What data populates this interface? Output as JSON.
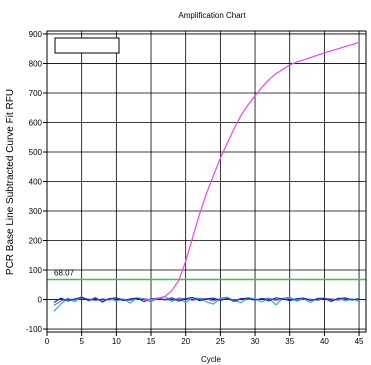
{
  "chart_data": {
    "type": "line",
    "title": "Amplification Chart",
    "xlabel": "Cycle",
    "ylabel": "PCR Base Line Subtracted Curve Fit RFU",
    "xlim": [
      0,
      46
    ],
    "ylim": [
      -110,
      910
    ],
    "x_ticks": [
      0,
      5,
      10,
      15,
      20,
      25,
      30,
      35,
      40,
      45
    ],
    "y_ticks": [
      -100,
      0,
      100,
      200,
      300,
      400,
      500,
      600,
      700,
      800,
      900
    ],
    "grid": true,
    "legend": {
      "position": "top-left",
      "entries": []
    },
    "threshold": {
      "value": 68.07,
      "label": "68.07",
      "color": "#33cc33"
    },
    "series": [
      {
        "color": "#ee44ee",
        "x": [
          14,
          15,
          16,
          17,
          18,
          19,
          20,
          21,
          22,
          23,
          24,
          25,
          26,
          27,
          28,
          29,
          30,
          31,
          32,
          33,
          34,
          35,
          36,
          37,
          38,
          39,
          40,
          41,
          42,
          43,
          44,
          45
        ],
        "y": [
          -2,
          0,
          3,
          10,
          30,
          65,
          130,
          210,
          290,
          360,
          420,
          480,
          530,
          580,
          625,
          660,
          690,
          720,
          745,
          765,
          780,
          795,
          805,
          812,
          820,
          828,
          836,
          843,
          850,
          857,
          864,
          872
        ]
      },
      {
        "color": "#1a33a8",
        "x": [
          1,
          2,
          3,
          4,
          5,
          6,
          7,
          8,
          9,
          10,
          11,
          12,
          13,
          14,
          15,
          16,
          17,
          18,
          19,
          20,
          21,
          22,
          23,
          24,
          25,
          26,
          27,
          28,
          29,
          30,
          31,
          32,
          33,
          34,
          35,
          36,
          37,
          38,
          39,
          40,
          41,
          42,
          43,
          44,
          45
        ],
        "y": [
          -10,
          5,
          -5,
          2,
          8,
          -3,
          4,
          -6,
          3,
          6,
          -4,
          2,
          5,
          -7,
          3,
          4,
          -2,
          6,
          -5,
          3,
          7,
          -4,
          2,
          5,
          -3,
          4,
          -6,
          3,
          5,
          -2,
          4,
          -5,
          6,
          2,
          -4,
          3,
          5,
          -3,
          2,
          4,
          -5,
          3,
          6,
          -2,
          4
        ]
      },
      {
        "color": "#33aadd",
        "x": [
          1,
          2,
          3,
          4,
          5,
          6,
          7,
          8,
          9,
          10,
          11,
          12,
          13,
          14,
          15,
          16,
          17,
          18,
          19,
          20,
          21,
          22,
          23,
          24,
          25,
          26,
          27,
          28,
          29,
          30,
          31,
          32,
          33,
          34,
          35,
          36,
          37,
          38,
          39,
          40,
          41,
          42,
          43,
          44,
          45
        ],
        "y": [
          -40,
          -15,
          5,
          -8,
          10,
          -5,
          8,
          -10,
          5,
          -6,
          3,
          -12,
          6,
          2,
          -8,
          5,
          10,
          -6,
          3,
          -10,
          6,
          4,
          -8,
          -15,
          5,
          8,
          -4,
          -10,
          6,
          3,
          -8,
          5,
          -18,
          4,
          8,
          -6,
          3,
          -10,
          5,
          4,
          -8,
          6,
          -5,
          3,
          -6
        ]
      },
      {
        "color": "#9966cc",
        "x": [
          1,
          2,
          3,
          4,
          5,
          6,
          7,
          8,
          9,
          10,
          11,
          12,
          13,
          14,
          15,
          16,
          17,
          18,
          19,
          20,
          21,
          22,
          23,
          24,
          25,
          26,
          27,
          28,
          29,
          30,
          31,
          32,
          33,
          34,
          35,
          36,
          37,
          38,
          39,
          40,
          41,
          42,
          43,
          44,
          45
        ],
        "y": [
          -20,
          -5,
          3,
          -2,
          5,
          2,
          -4,
          3,
          -2,
          4,
          1,
          -3,
          2,
          4,
          -2,
          3,
          1,
          -4,
          5,
          2,
          -3,
          4,
          2,
          -5,
          3,
          2,
          -3,
          4,
          1,
          -2,
          3,
          5,
          -3,
          2,
          4,
          -2,
          3,
          1,
          -3,
          4,
          2,
          -2,
          3,
          1,
          -2
        ]
      }
    ]
  }
}
